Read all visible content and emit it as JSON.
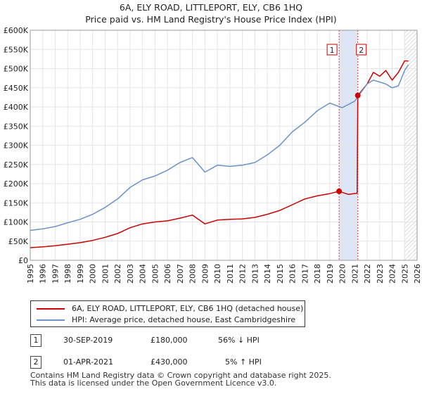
{
  "title_line1": "6A, ELY ROAD, LITTLEPORT, ELY, CB6 1HQ",
  "title_line2": "Price paid vs. HM Land Registry's House Price Index (HPI)",
  "colors": {
    "property": "#cc0000",
    "hpi": "#6a93c9",
    "highlight": "#dde6f7",
    "grid": "#e5e5e5"
  },
  "chart_data": {
    "type": "line",
    "title": "Price paid vs. HM Land Registry's House Price Index (HPI)",
    "xlabel": "",
    "ylabel": "",
    "xlim": [
      1995,
      2026
    ],
    "ylim": [
      0,
      600000
    ],
    "x_ticks": [
      "1995",
      "1996",
      "1997",
      "1998",
      "1999",
      "2000",
      "2001",
      "2002",
      "2003",
      "2004",
      "2005",
      "2006",
      "2007",
      "2008",
      "2009",
      "2010",
      "2011",
      "2012",
      "2013",
      "2014",
      "2015",
      "2016",
      "2017",
      "2018",
      "2019",
      "2020",
      "2021",
      "2022",
      "2023",
      "2024",
      "2025",
      "2026"
    ],
    "y_ticks": [
      "£0",
      "£50K",
      "£100K",
      "£150K",
      "£200K",
      "£250K",
      "£300K",
      "£350K",
      "£400K",
      "£450K",
      "£500K",
      "£550K",
      "£600K"
    ],
    "grid": true,
    "series": [
      {
        "name": "6A, ELY ROAD, LITTLEPORT, ELY, CB6 1HQ (detached house)",
        "color": "#cc0000",
        "x": [
          1995,
          1996,
          1997,
          1998,
          1999,
          2000,
          2001,
          2002,
          2003,
          2004,
          2005,
          2006,
          2007,
          2008,
          2009,
          2010,
          2011,
          2012,
          2013,
          2014,
          2015,
          2016,
          2017,
          2018,
          2019,
          2019.75,
          2020.5,
          2021.2,
          2021.25,
          2021.5,
          2022,
          2022.5,
          2023,
          2023.5,
          2024,
          2024.5,
          2025,
          2025.3
        ],
        "values": [
          33000,
          35000,
          38000,
          42000,
          46000,
          52000,
          60000,
          70000,
          85000,
          95000,
          100000,
          103000,
          110000,
          118000,
          95000,
          105000,
          107000,
          108000,
          112000,
          120000,
          130000,
          145000,
          160000,
          168000,
          174000,
          180000,
          172000,
          175000,
          430000,
          440000,
          460000,
          490000,
          480000,
          495000,
          470000,
          490000,
          520000,
          520000
        ]
      },
      {
        "name": "HPI: Average price, detached house, East Cambridgeshire",
        "color": "#6a93c9",
        "x": [
          1995,
          1996,
          1997,
          1998,
          1999,
          2000,
          2001,
          2002,
          2003,
          2004,
          2005,
          2006,
          2007,
          2008,
          2009,
          2010,
          2011,
          2012,
          2013,
          2014,
          2015,
          2016,
          2017,
          2018,
          2019,
          2020,
          2021,
          2022,
          2022.5,
          2023,
          2023.5,
          2024,
          2024.5,
          2025,
          2025.3
        ],
        "values": [
          78000,
          82000,
          88000,
          98000,
          107000,
          120000,
          138000,
          160000,
          190000,
          210000,
          220000,
          235000,
          255000,
          268000,
          230000,
          248000,
          245000,
          248000,
          255000,
          275000,
          300000,
          335000,
          360000,
          390000,
          410000,
          398000,
          415000,
          460000,
          470000,
          465000,
          460000,
          450000,
          455000,
          495000,
          510000
        ]
      }
    ],
    "annotations": [
      {
        "label": "1",
        "x": 2019.75,
        "y": 180000
      },
      {
        "label": "2",
        "x": 2021.25,
        "y": 430000
      }
    ],
    "highlight_span": [
      2019.75,
      2021.25
    ],
    "hatched_from": 2025.0
  },
  "legend": {
    "property_label": "6A, ELY ROAD, LITTLEPORT, ELY, CB6 1HQ (detached house)",
    "hpi_label": "HPI: Average price, detached house, East Cambridgeshire"
  },
  "transactions": [
    {
      "id": "1",
      "date": "30-SEP-2019",
      "price": "£180,000",
      "hpi": "56% ↓ HPI"
    },
    {
      "id": "2",
      "date": "01-APR-2021",
      "price": "£430,000",
      "hpi": "5% ↑ HPI"
    }
  ],
  "footer_line1": "Contains HM Land Registry data © Crown copyright and database right 2025.",
  "footer_line2": "This data is licensed under the Open Government Licence v3.0."
}
